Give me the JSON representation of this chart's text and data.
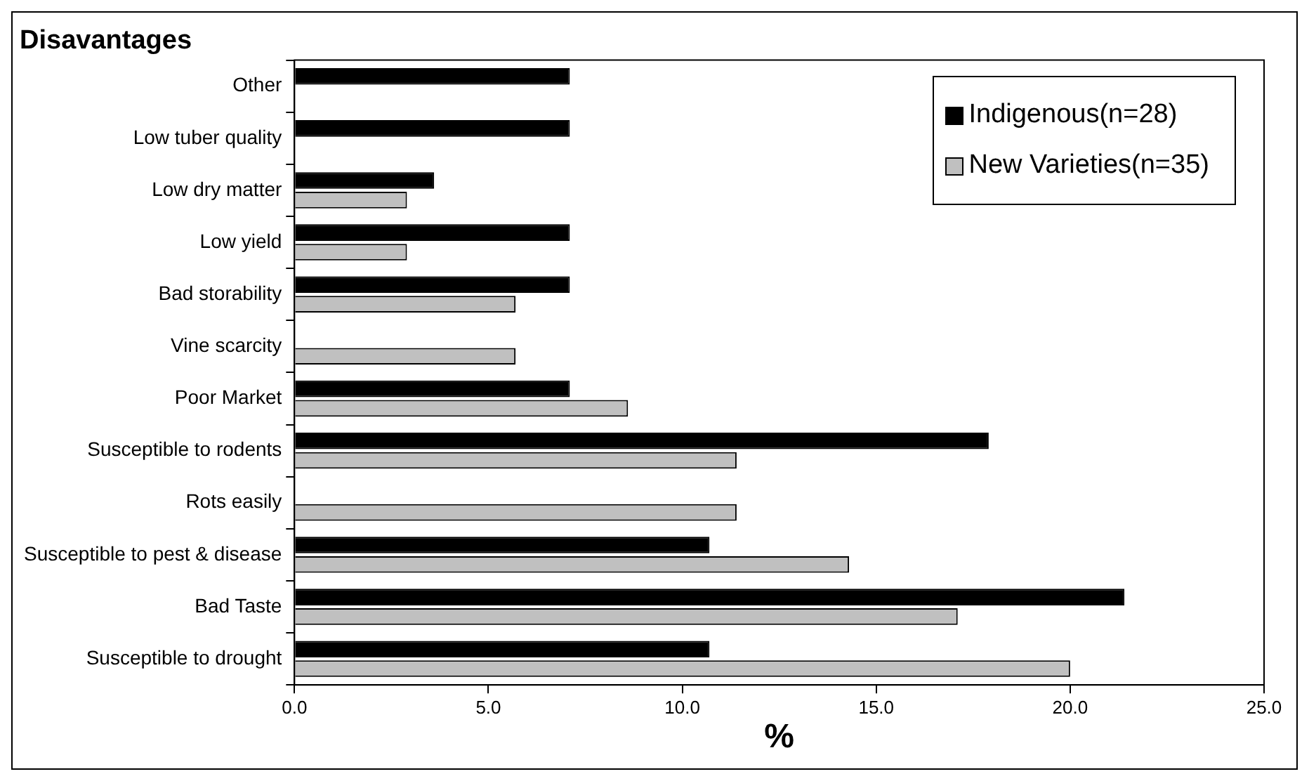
{
  "chart_data": {
    "type": "bar",
    "orientation": "horizontal",
    "title": "Disavantages",
    "xlabel": "%",
    "categories": [
      "Other",
      "Low tuber quality",
      "Low dry matter",
      "Low yield",
      "Bad storability",
      "Vine scarcity",
      "Poor Market",
      "Susceptible to rodents",
      "Rots easily",
      "Susceptible to pest & disease",
      "Bad Taste",
      "Susceptible to drought"
    ],
    "series": [
      {
        "name": "Indigenous(n=28)",
        "color": "#000000",
        "values": [
          7.1,
          7.1,
          3.6,
          7.1,
          7.1,
          0,
          7.1,
          17.9,
          0,
          10.7,
          21.4,
          10.7
        ]
      },
      {
        "name": "New Varieties(n=35)",
        "color": "#c0c0c0",
        "values": [
          0,
          0,
          2.9,
          2.9,
          5.7,
          5.7,
          8.6,
          11.4,
          11.4,
          14.3,
          17.1,
          20.0
        ]
      }
    ],
    "xlim": [
      0,
      25
    ],
    "xticks": [
      {
        "value": 0,
        "label": "0.0"
      },
      {
        "value": 5,
        "label": "5.0"
      },
      {
        "value": 10,
        "label": "10.0"
      },
      {
        "value": 15,
        "label": "15.0"
      },
      {
        "value": 20,
        "label": "20.0"
      },
      {
        "value": 25,
        "label": "25.0"
      }
    ],
    "grid": false,
    "legend": "top right"
  }
}
